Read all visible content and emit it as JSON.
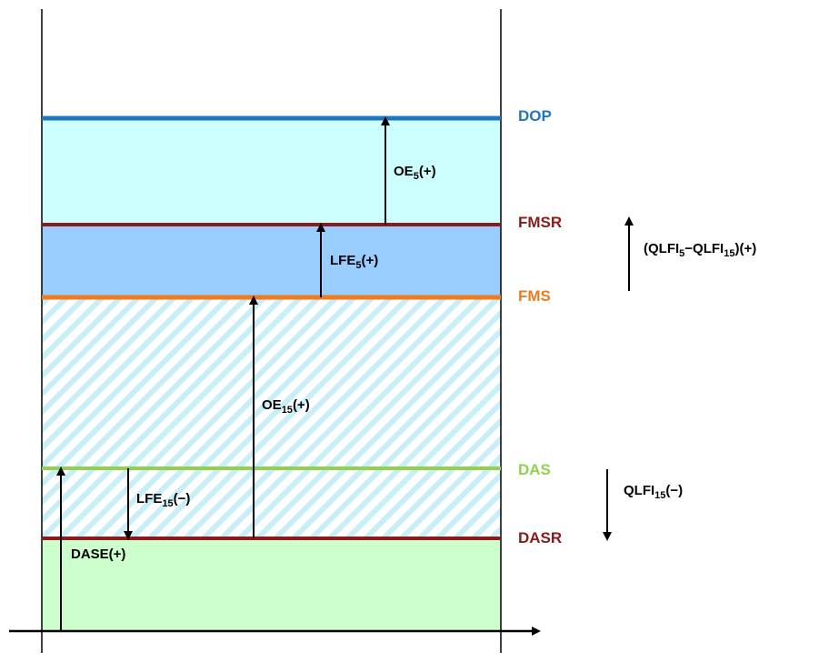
{
  "colors": {
    "dop": "#1f77c1",
    "fmsr": "#8b1a1a",
    "fms": "#f07b1c",
    "das": "#92d050",
    "dasr": "#8b1a1a",
    "band_top": "#ccffff",
    "band_mid": "#99ccff",
    "band_bottom": "#ccffcc",
    "hatch": "#c8eef8"
  },
  "levels": {
    "dop": "DOP",
    "fmsr": "FMSR",
    "fms": "FMS",
    "das": "DAS",
    "dasr": "DASR"
  },
  "arrows": {
    "oe5": {
      "main": "OE",
      "sub": "5",
      "tail": "(+)"
    },
    "lfe5": {
      "main": "LFE",
      "sub": "5",
      "tail": "(+)"
    },
    "oe15": {
      "main": "OE",
      "sub": "15",
      "tail": "(+)"
    },
    "lfe15": {
      "main": "LFE",
      "sub": "15",
      "tail": "(−)"
    },
    "dase": {
      "main": "DASE(+)"
    }
  },
  "side": {
    "qlfi_diff": {
      "p1": "(QLFI",
      "s1": "5",
      "p2": "−QLFI",
      "s2": "15",
      "p3": ")(+)"
    },
    "qlfi15": {
      "p1": "QLFI",
      "s1": "15",
      "p2": "(−)"
    }
  }
}
